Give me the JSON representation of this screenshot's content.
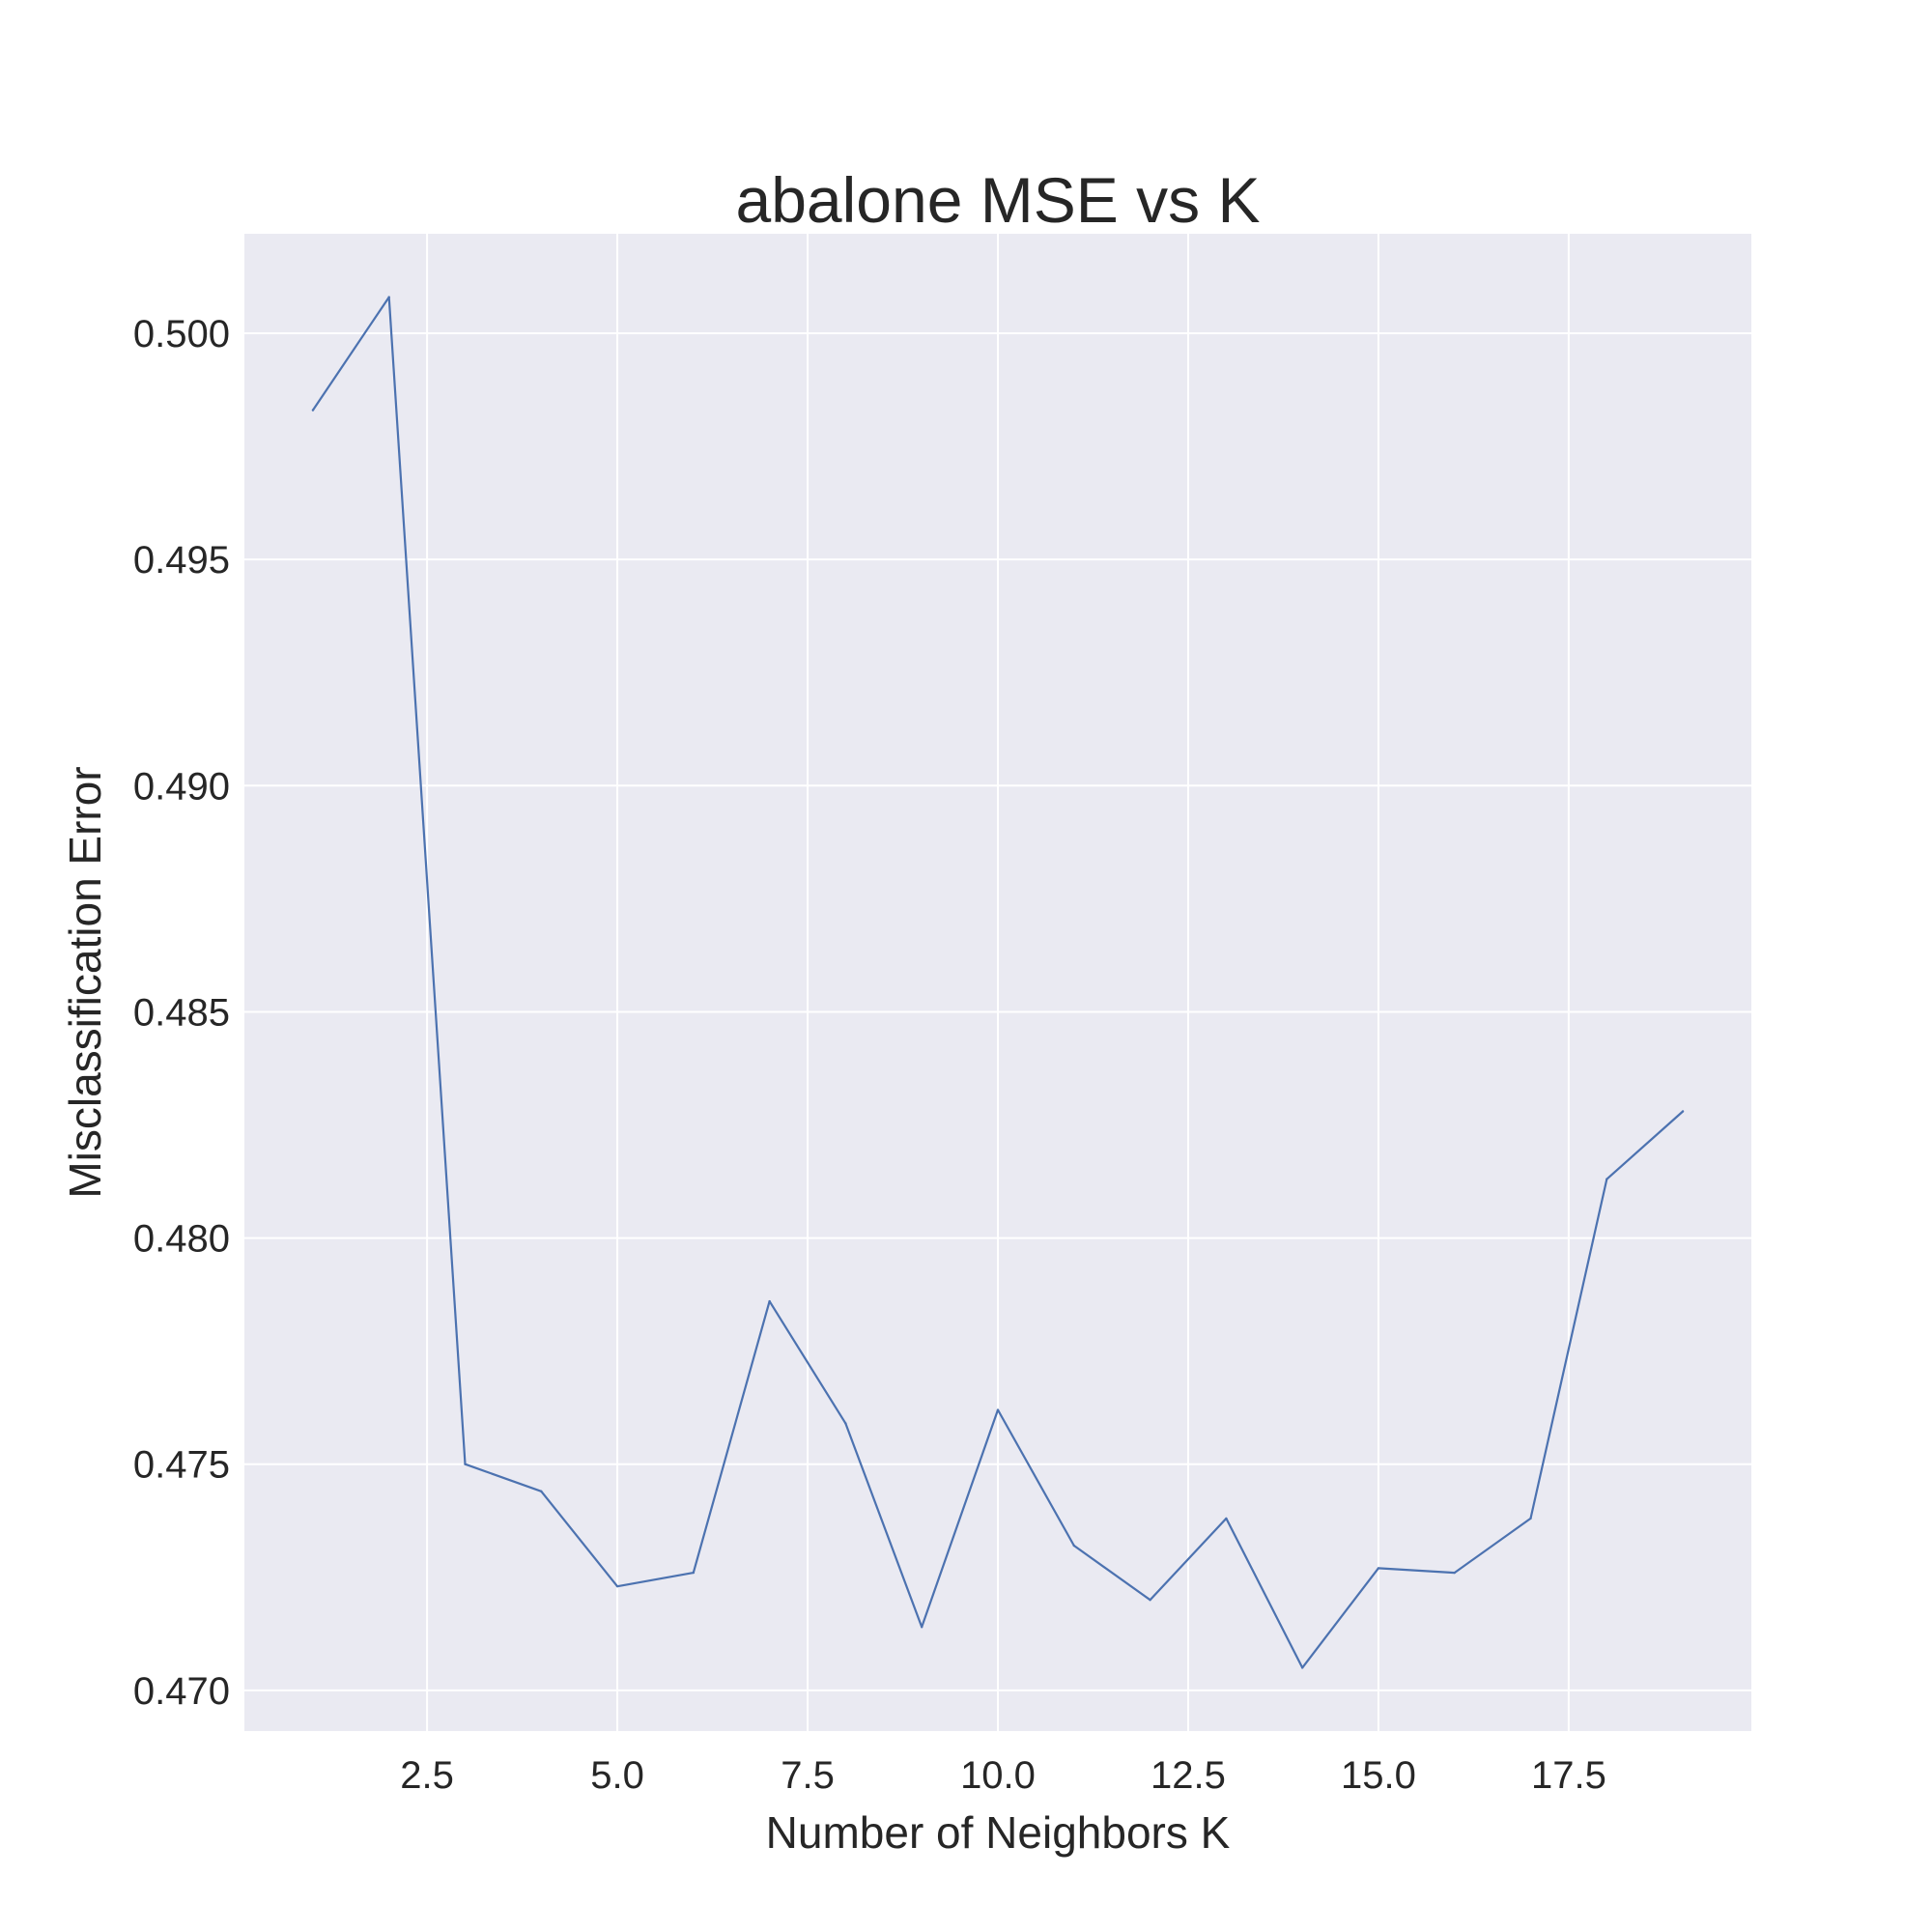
{
  "chart_data": {
    "type": "line",
    "title": "abalone MSE vs K",
    "xlabel": "Number of Neighbors K",
    "ylabel": "Misclassification Error",
    "xlim": [
      0.1,
      19.9
    ],
    "ylim": [
      0.4691,
      0.5022
    ],
    "xticks": [
      2.5,
      5.0,
      7.5,
      10.0,
      12.5,
      15.0,
      17.5
    ],
    "xtick_labels": [
      "2.5",
      "5.0",
      "7.5",
      "10.0",
      "12.5",
      "15.0",
      "17.5"
    ],
    "yticks": [
      0.47,
      0.475,
      0.48,
      0.485,
      0.49,
      0.495,
      0.5
    ],
    "ytick_labels": [
      "0.470",
      "0.475",
      "0.480",
      "0.485",
      "0.490",
      "0.495",
      "0.500"
    ],
    "grid": true,
    "background": "#EAEAF2",
    "grid_color": "#FFFFFF",
    "series": [
      {
        "color": "#4C72B0",
        "x": [
          1,
          2,
          3,
          4,
          5,
          6,
          7,
          8,
          9,
          10,
          11,
          12,
          13,
          14,
          15,
          16,
          17,
          18,
          19
        ],
        "values": [
          0.4983,
          0.5008,
          0.475,
          0.4744,
          0.4723,
          0.4726,
          0.4786,
          0.4759,
          0.4714,
          0.4762,
          0.4732,
          0.472,
          0.4738,
          0.4705,
          0.4727,
          0.4726,
          0.4738,
          0.4813,
          0.4828
        ]
      }
    ]
  }
}
